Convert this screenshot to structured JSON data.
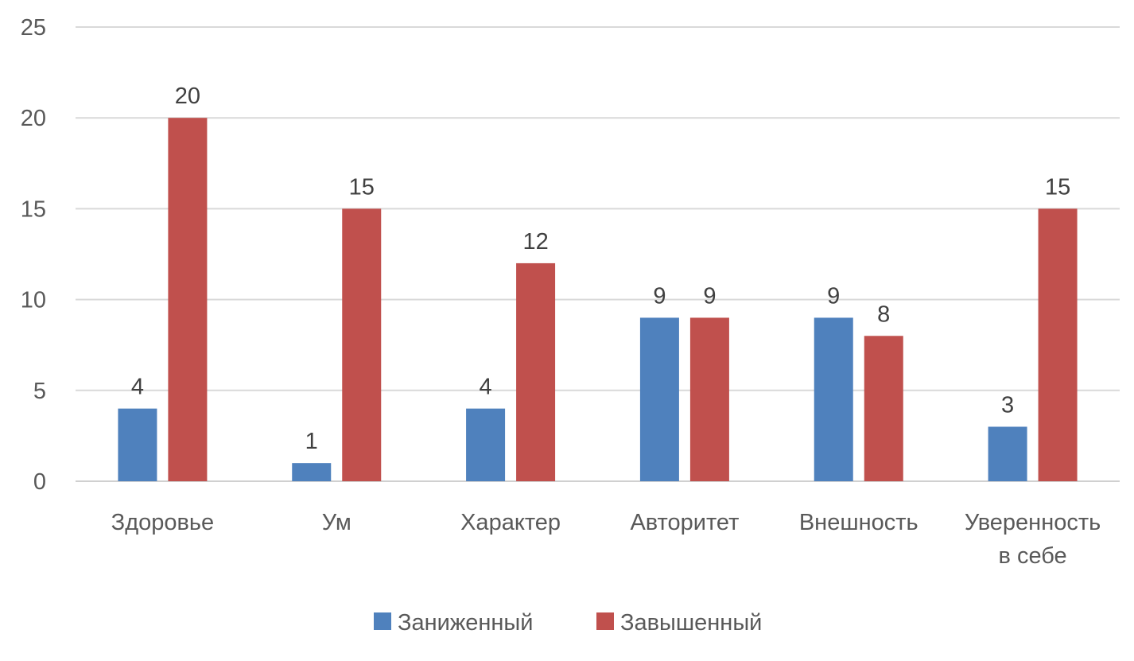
{
  "chart_data": {
    "type": "bar",
    "title": "",
    "xlabel": "",
    "ylabel": "",
    "categories": [
      [
        "Здоровье"
      ],
      [
        "Ум"
      ],
      [
        "Характер"
      ],
      [
        "Авторитет"
      ],
      [
        "Внешность"
      ],
      [
        "Уверенность",
        "в себе"
      ]
    ],
    "series": [
      {
        "name": "Заниженный",
        "color": "#4F81BD",
        "values": [
          4,
          1,
          4,
          9,
          9,
          3
        ]
      },
      {
        "name": "Завышенный",
        "color": "#C0504D",
        "values": [
          20,
          15,
          12,
          9,
          8,
          15
        ]
      }
    ],
    "ylim": [
      0,
      25
    ],
    "yticks": [
      0,
      5,
      10,
      15,
      20,
      25
    ],
    "grid": true,
    "legend": "bottom",
    "data_labels": true
  }
}
